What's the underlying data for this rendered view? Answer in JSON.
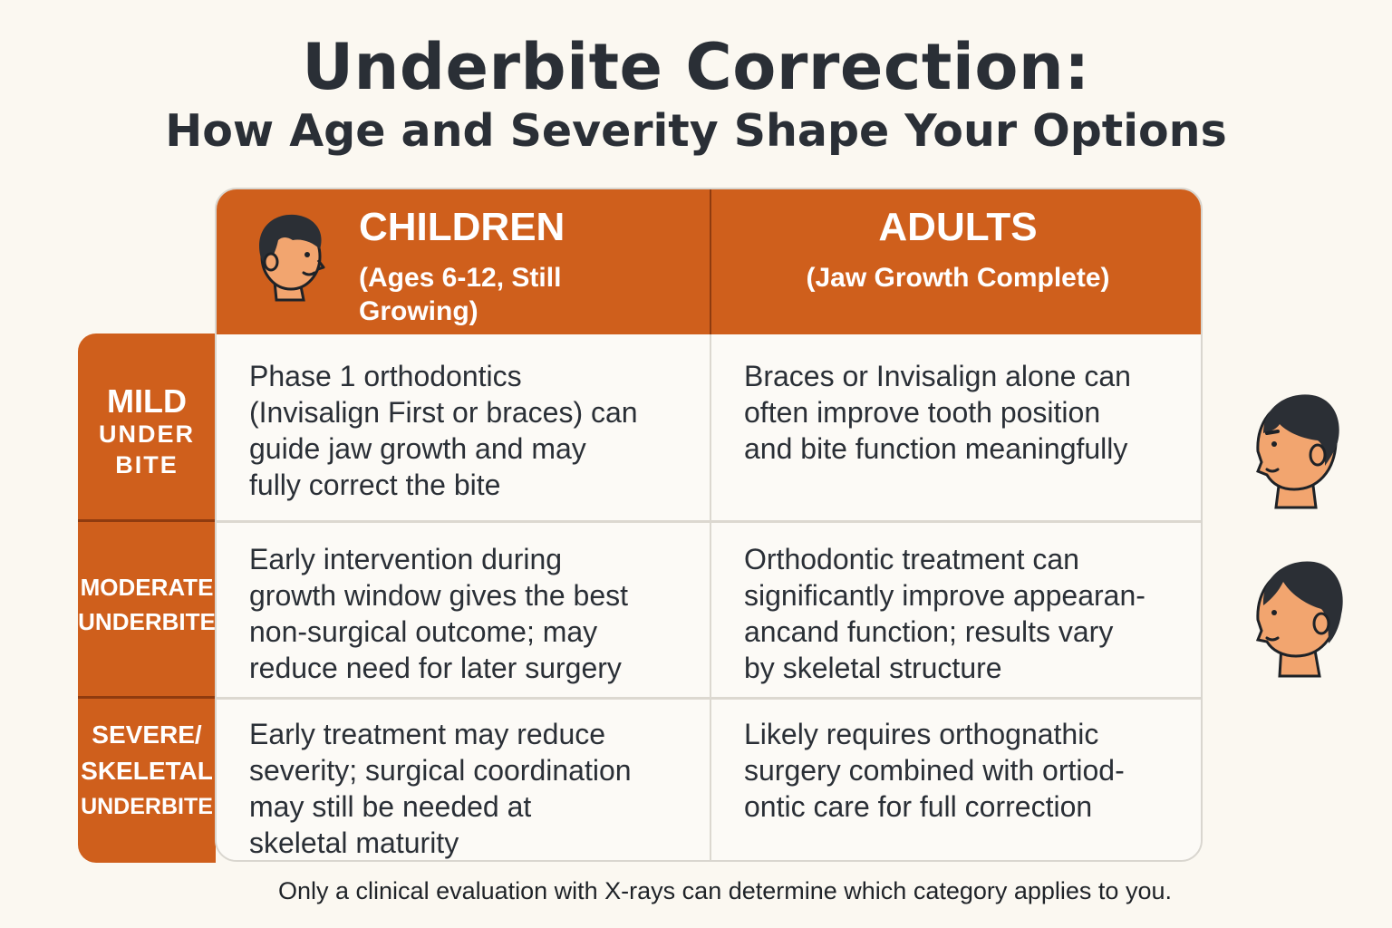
{
  "title": "Underbite Correction:",
  "subtitle": "How Age and Severity Shape Your Options",
  "columns": {
    "children": {
      "title": "CHILDREN",
      "subtitle_line1": "(Ages 6-12, Still",
      "subtitle_line2": "Growing)"
    },
    "adults": {
      "title": "ADULTS",
      "subtitle": "(Jaw Growth Complete)"
    }
  },
  "rows": [
    {
      "label_lines": [
        "MILD",
        "UNDER",
        "BITE"
      ],
      "children": [
        "Phase 1 orthodontics",
        "(Invisalign First or braces) can",
        "guide jaw growth and may",
        "fully correct the bite"
      ],
      "adults": [
        "Braces or Invisalign alone can",
        "often improve tooth position",
        "and bite function meaningfully"
      ]
    },
    {
      "label_lines": [
        "MODERATE",
        "UNDERBITE"
      ],
      "children": [
        "Early intervention during",
        "growth window gives the best",
        "non-surgical outcome; may",
        "reduce need for later surgery"
      ],
      "adults": [
        "Orthodontic treatment can",
        "significantly improve appearan-",
        "ancand function; results vary",
        "by skeletal structure"
      ]
    },
    {
      "label_lines": [
        "SEVERE/",
        "SKELETAL",
        "UNDERBITE"
      ],
      "children": [
        "Early treatment may reduce",
        "severity; surgical coordination",
        "may still be needed at",
        "skeletal maturity"
      ],
      "adults": [
        "Likely requires orthognathic",
        "surgery combined with ortiod-",
        "ontic care for full correction"
      ]
    }
  ],
  "footer": "Only a clinical evaluation with X-rays can determine which category applies to you.",
  "icons": [
    "child-face-icon",
    "adult-man-face-icon",
    "adult-woman-face-icon"
  ],
  "colors": {
    "accent": "#cf5f1c",
    "dark": "#2a2f36",
    "background": "#fbf8f1",
    "skin": "#f2a56f"
  }
}
